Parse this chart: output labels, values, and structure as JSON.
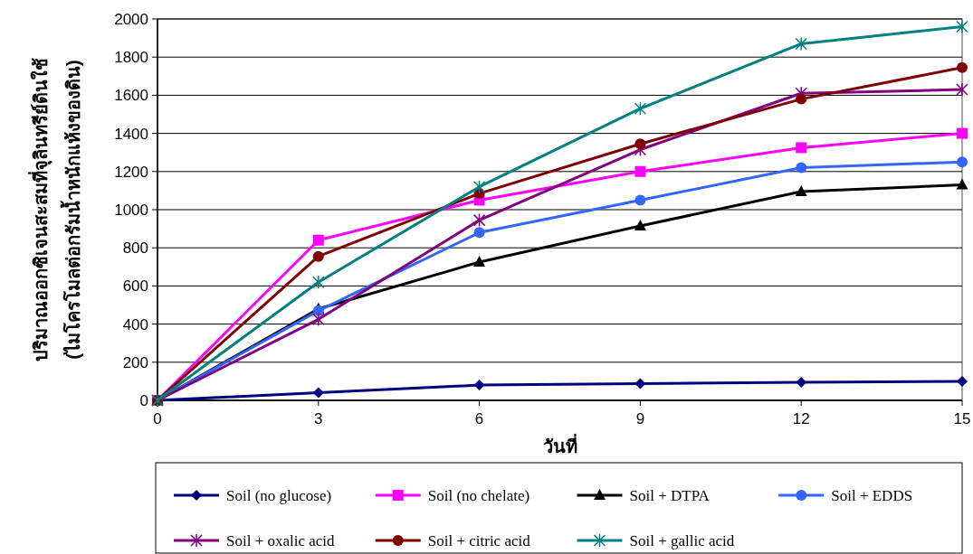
{
  "chart_data": {
    "type": "line",
    "xlabel": "วันที่",
    "ylabel": "ปริมาณออกซิเจนสะสมที่จุลินทรีย์ดินใช้\n(ไมโครโมลต่อกรัมน้ำหนักแห้งของดิน)",
    "x": [
      0,
      3,
      6,
      9,
      12,
      15
    ],
    "xlim": [
      0,
      15
    ],
    "xticks": [
      0,
      3,
      6,
      9,
      12,
      15
    ],
    "ylim": [
      0,
      2000
    ],
    "yticks": [
      0,
      200,
      400,
      600,
      800,
      1000,
      1200,
      1400,
      1600,
      1800,
      2000
    ],
    "grid": "y",
    "legend": "bottom",
    "series": [
      {
        "name": "Soil (no glucose)",
        "color": "#000080",
        "marker": "diamond",
        "values": [
          0,
          40,
          80,
          88,
          95,
          100
        ]
      },
      {
        "name": "Soil (no chelate)",
        "color": "#ff00ff",
        "marker": "square",
        "values": [
          0,
          840,
          1050,
          1200,
          1325,
          1400
        ]
      },
      {
        "name": "Soil + DTPA",
        "color": "#000000",
        "marker": "triangle",
        "values": [
          0,
          480,
          725,
          915,
          1095,
          1130
        ]
      },
      {
        "name": "Soil + EDDS",
        "color": "#3366ff",
        "marker": "circle",
        "values": [
          0,
          470,
          880,
          1050,
          1220,
          1250
        ]
      },
      {
        "name": "Soil + oxalic acid",
        "color": "#800080",
        "marker": "cross",
        "values": [
          0,
          425,
          945,
          1315,
          1610,
          1630
        ]
      },
      {
        "name": "Soil + citric acid",
        "color": "#800000",
        "marker": "circle",
        "values": [
          0,
          755,
          1085,
          1345,
          1580,
          1745
        ]
      },
      {
        "name": "Soil + gallic acid",
        "color": "#008080",
        "marker": "cross",
        "values": [
          0,
          620,
          1120,
          1530,
          1870,
          1960
        ]
      }
    ]
  }
}
